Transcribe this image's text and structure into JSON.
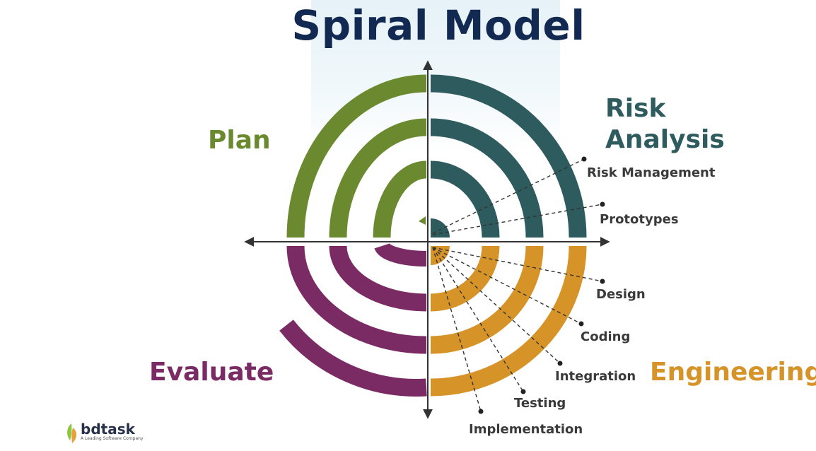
{
  "title": "Spiral Model",
  "quadrants": {
    "plan": "Plan",
    "risk_line1": "Risk",
    "risk_line2": "Analysis",
    "evaluate": "Evaluate",
    "engineering": "Engineering"
  },
  "labels": {
    "risk_management": "Risk Management",
    "prototypes": "Prototypes",
    "design": "Design",
    "coding": "Coding",
    "integration": "Integration",
    "testing": "Testing",
    "implementation": "Implementation"
  },
  "colors": {
    "plan": "#6b8a30",
    "risk": "#2e5b5e",
    "evaluate": "#7b2b63",
    "engineering": "#d69328",
    "title": "#122a52"
  },
  "logo": {
    "name": "bdtask",
    "tagline": "A Leading Software Company"
  }
}
